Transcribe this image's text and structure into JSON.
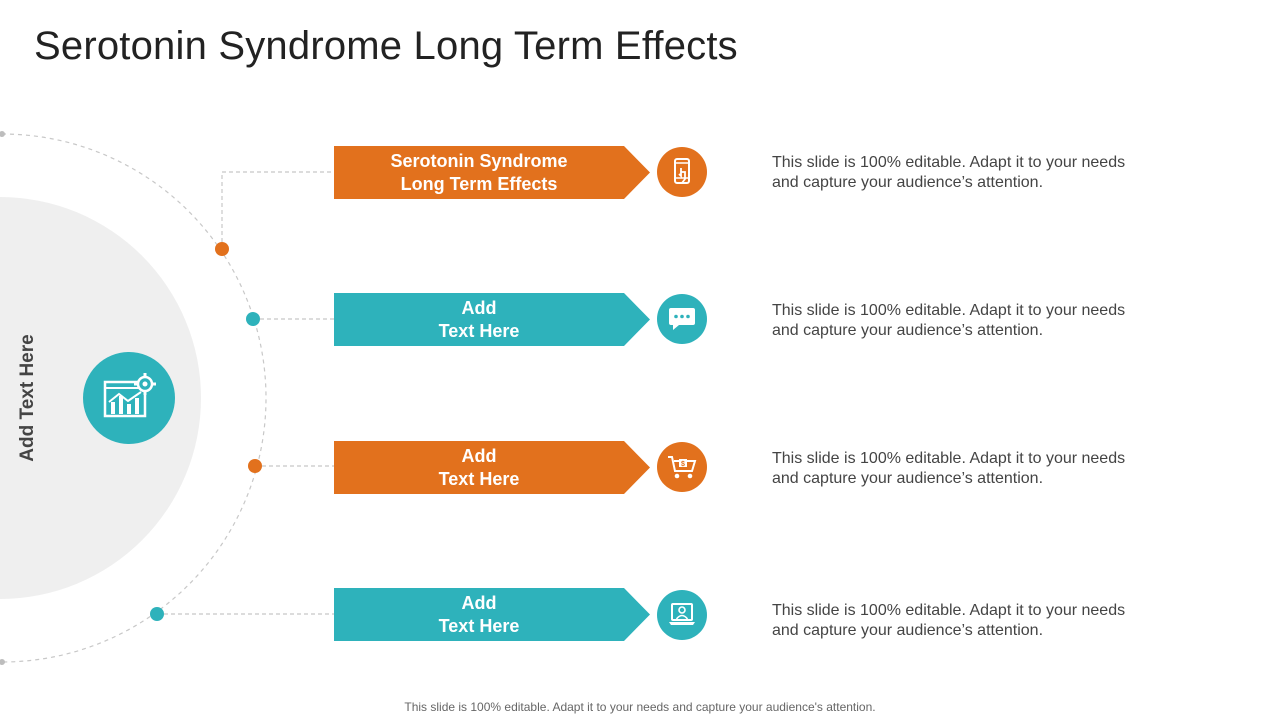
{
  "title": "Serotonin Syndrome Long Term Effects",
  "side_label": "Add Text Here",
  "hub": {
    "icon": "chart-gear-icon"
  },
  "items": [
    {
      "label": "Serotonin Syndrome\nLong Term Effects",
      "color": "#e2711d",
      "icon": "mobile-touch-icon",
      "description": "This slide is 100% editable. Adapt it to your needs and capture your audience’s attention."
    },
    {
      "label": "Add\nText Here",
      "color": "#2eb2bb",
      "icon": "chat-bubble-icon",
      "description": "This slide is 100% editable. Adapt it to your needs and capture your audience’s attention."
    },
    {
      "label": "Add\nText Here",
      "color": "#e2711d",
      "icon": "shopping-cart-icon",
      "description": "This slide is 100% editable. Adapt it to your needs and capture your audience’s attention."
    },
    {
      "label": "Add\nText Here",
      "color": "#2eb2bb",
      "icon": "laptop-user-icon",
      "description": "This slide is 100% editable. Adapt it to your needs and capture your audience’s attention."
    }
  ],
  "footer": "This slide is 100% editable. Adapt it to your needs and capture your audience's attention.",
  "colors": {
    "orange": "#e2711d",
    "teal": "#2eb2bb",
    "panel": "#efefef"
  }
}
